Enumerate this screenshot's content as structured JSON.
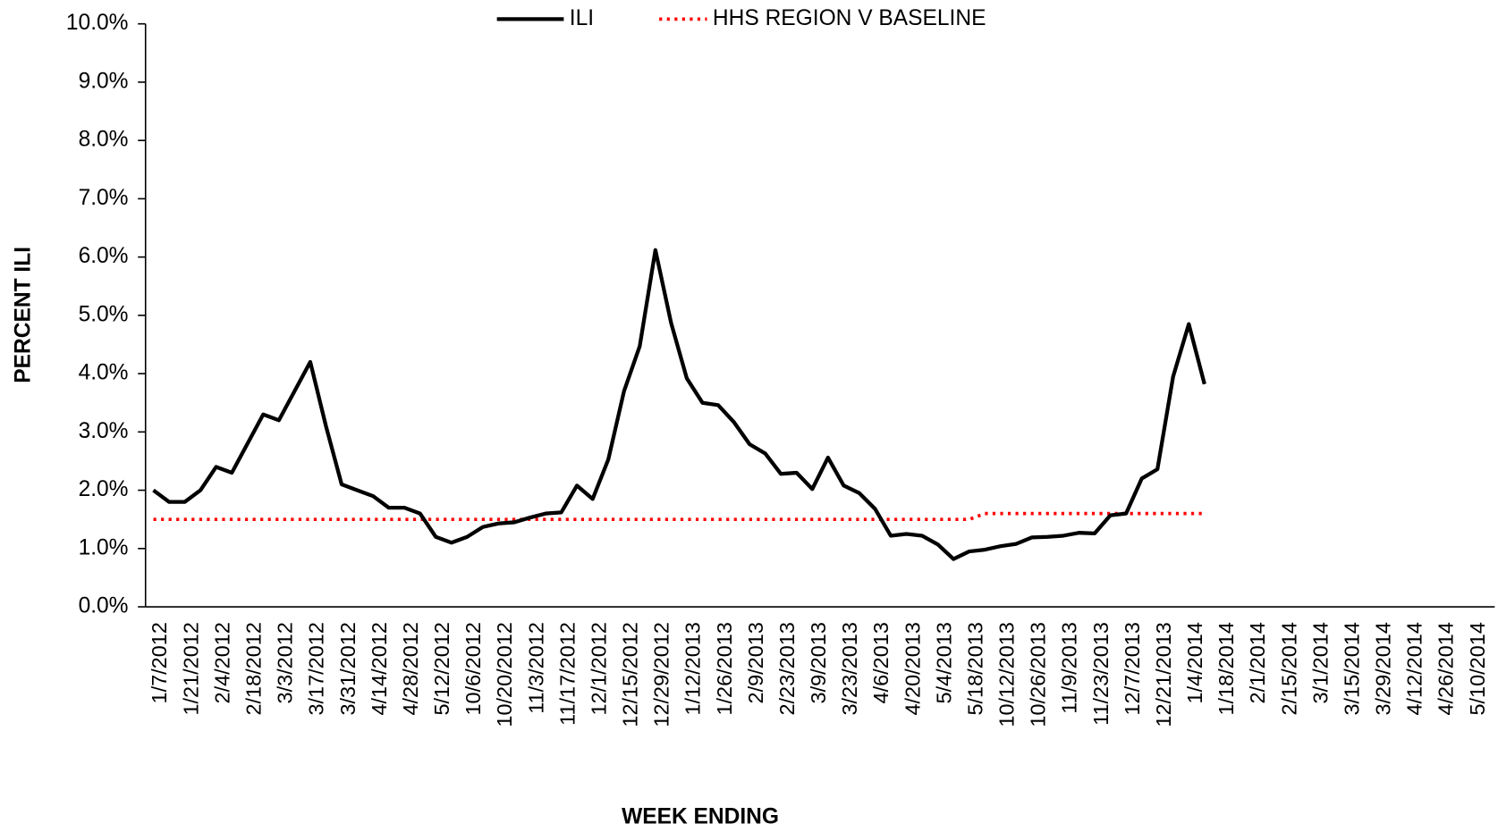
{
  "chart_data": {
    "type": "line",
    "x_label": "WEEK ENDING",
    "y_label": "PERCENT ILI",
    "categories": [
      "1/7/2012",
      null,
      "1/21/2012",
      null,
      "2/4/2012",
      null,
      "2/18/2012",
      null,
      "3/3/2012",
      null,
      "3/17/2012",
      null,
      "3/31/2012",
      null,
      "4/14/2012",
      null,
      "4/28/2012",
      null,
      "5/12/2012",
      null,
      "10/6/2012",
      null,
      "10/20/2012",
      null,
      "11/3/2012",
      null,
      "11/17/2012",
      null,
      "12/1/2012",
      null,
      "12/15/2012",
      null,
      "12/29/2012",
      null,
      "1/12/2013",
      null,
      "1/26/2013",
      null,
      "2/9/2013",
      null,
      "2/23/2013",
      null,
      "3/9/2013",
      null,
      "3/23/2013",
      null,
      "4/6/2013",
      null,
      "4/20/2013",
      null,
      "5/4/2013",
      null,
      "5/18/2013",
      null,
      "10/12/2013",
      null,
      "10/26/2013",
      null,
      "11/9/2013",
      null,
      "11/23/2013",
      null,
      "12/7/2013",
      null,
      "12/21/2013",
      null,
      "1/4/2014",
      null,
      "1/18/2014",
      null,
      "2/1/2014",
      null,
      "2/15/2014",
      null,
      "3/1/2014",
      null,
      "3/15/2014",
      null,
      "3/29/2014",
      null,
      "4/12/2014",
      null,
      "4/26/2014",
      null,
      "5/10/2014",
      null
    ],
    "series": [
      {
        "name": "ILI",
        "color": "#000000",
        "line_style": "solid",
        "values": [
          2.0,
          1.8,
          1.8,
          2.0,
          2.4,
          2.3,
          2.8,
          3.3,
          3.2,
          3.7,
          4.2,
          3.1,
          2.1,
          2.0,
          1.9,
          1.7,
          1.7,
          1.6,
          1.2,
          1.1,
          1.2,
          1.37,
          1.43,
          1.45,
          1.53,
          1.6,
          1.62,
          2.08,
          1.85,
          2.53,
          3.7,
          4.47,
          6.12,
          4.87,
          3.92,
          3.5,
          3.46,
          3.17,
          2.79,
          2.63,
          2.28,
          2.3,
          2.02,
          2.56,
          2.08,
          1.95,
          1.68,
          1.22,
          1.25,
          1.22,
          1.07,
          0.82,
          0.95,
          0.98,
          1.04,
          1.08,
          1.19,
          1.2,
          1.22,
          1.27,
          1.26,
          1.57,
          1.6,
          2.2,
          2.36,
          3.95,
          4.85,
          3.82,
          null,
          null,
          null,
          null,
          null,
          null,
          null,
          null,
          null,
          null,
          null,
          null,
          null,
          null,
          null,
          null,
          null,
          null
        ]
      },
      {
        "name": "HHS REGION V BASELINE",
        "color": "#ff0000",
        "line_style": "dotted",
        "values": [
          1.5,
          1.5,
          1.5,
          1.5,
          1.5,
          1.5,
          1.5,
          1.5,
          1.5,
          1.5,
          1.5,
          1.5,
          1.5,
          1.5,
          1.5,
          1.5,
          1.5,
          1.5,
          1.5,
          1.5,
          1.5,
          1.5,
          1.5,
          1.5,
          1.5,
          1.5,
          1.5,
          1.5,
          1.5,
          1.5,
          1.5,
          1.5,
          1.5,
          1.5,
          1.5,
          1.5,
          1.5,
          1.5,
          1.5,
          1.5,
          1.5,
          1.5,
          1.5,
          1.5,
          1.5,
          1.5,
          1.5,
          1.5,
          1.5,
          1.5,
          1.5,
          1.5,
          1.5,
          1.6,
          1.6,
          1.6,
          1.6,
          1.6,
          1.6,
          1.6,
          1.6,
          1.6,
          1.6,
          1.6,
          1.6,
          1.6,
          1.6,
          1.6,
          null,
          null,
          null,
          null,
          null,
          null,
          null,
          null,
          null,
          null,
          null,
          null,
          null,
          null,
          null,
          null,
          null,
          null
        ]
      }
    ],
    "ylim": [
      0,
      10
    ],
    "yticks": [
      {
        "value": 0,
        "label": "0.0%"
      },
      {
        "value": 1,
        "label": "1.0%"
      },
      {
        "value": 2,
        "label": "2.0%"
      },
      {
        "value": 3,
        "label": "3.0%"
      },
      {
        "value": 4,
        "label": "4.0%"
      },
      {
        "value": 5,
        "label": "5.0%"
      },
      {
        "value": 6,
        "label": "6.0%"
      },
      {
        "value": 7,
        "label": "7.0%"
      },
      {
        "value": 8,
        "label": "8.0%"
      },
      {
        "value": 9,
        "label": "9.0%"
      },
      {
        "value": 10,
        "label": "10.0%"
      }
    ],
    "grid": false,
    "legend": "top"
  }
}
